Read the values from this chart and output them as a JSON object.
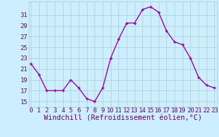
{
  "x": [
    0,
    1,
    2,
    3,
    4,
    5,
    6,
    7,
    8,
    9,
    10,
    11,
    12,
    13,
    14,
    15,
    16,
    17,
    18,
    19,
    20,
    21,
    22,
    23
  ],
  "y": [
    22,
    20,
    17,
    17,
    17,
    19,
    17.5,
    15.5,
    15,
    17.5,
    23,
    26.5,
    29.5,
    29.5,
    32,
    32.5,
    31.5,
    28,
    26,
    25.5,
    23,
    19.5,
    18,
    17.5
  ],
  "line_color": "#990099",
  "marker_color": "#990099",
  "bg_color": "#cceeff",
  "grid_color": "#aacccc",
  "xlabel": "Windchill (Refroidissement éolien,°C)",
  "yticks": [
    15,
    17,
    19,
    21,
    23,
    25,
    27,
    29,
    31
  ],
  "xticks": [
    0,
    1,
    2,
    3,
    4,
    5,
    6,
    7,
    8,
    9,
    10,
    11,
    12,
    13,
    14,
    15,
    16,
    17,
    18,
    19,
    20,
    21,
    22,
    23
  ],
  "ylim": [
    14.0,
    33.5
  ],
  "xlim": [
    -0.3,
    23.3
  ],
  "tick_color": "#660066",
  "label_fontsize": 6.5,
  "xlabel_fontsize": 7.5
}
